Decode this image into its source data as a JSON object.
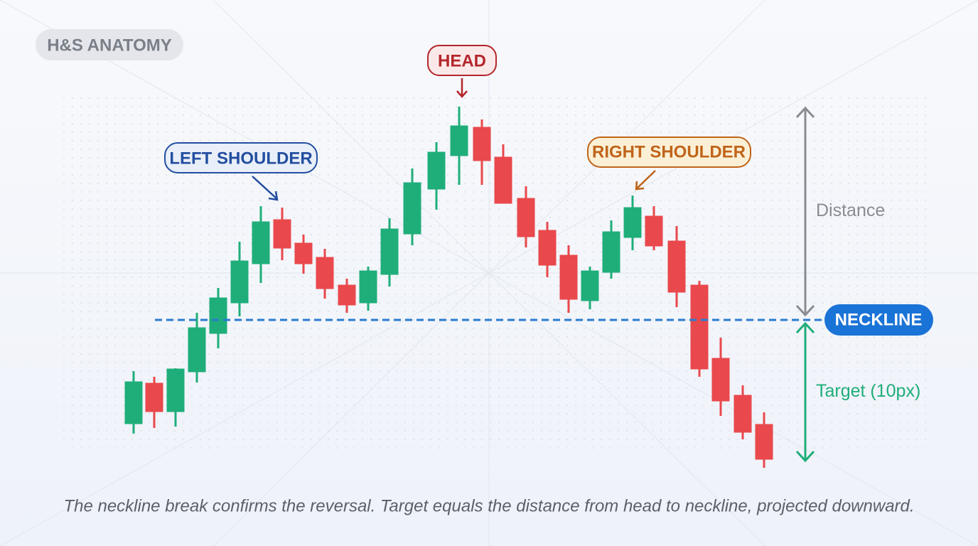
{
  "badge": "H&S ANATOMY",
  "labels": {
    "head": "HEAD",
    "left_shoulder": "LEFT SHOULDER",
    "right_shoulder": "RIGHT SHOULDER",
    "neckline": "NECKLINE",
    "distance": "Distance",
    "target": "Target (10px)"
  },
  "caption": "The neckline break confirms the reversal. Target equals the distance from head to neckline, projected downward."
}
